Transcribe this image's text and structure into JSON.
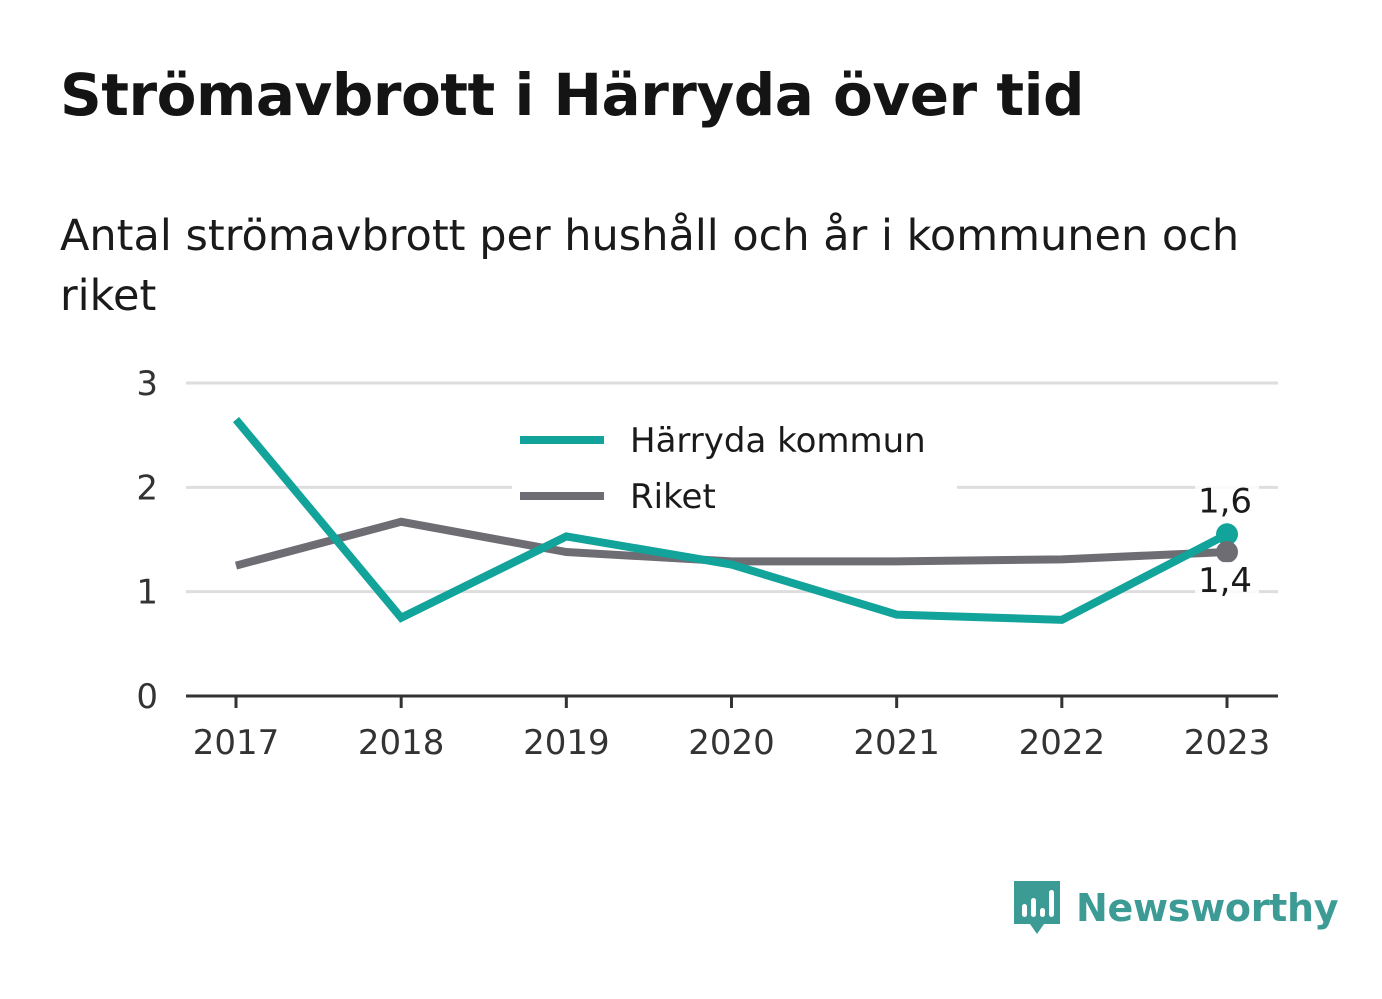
{
  "title": "Strömavbrott i Härryda över tid",
  "subtitle": "Antal strömavbrott per hushåll och år i kommunen och riket",
  "brand": {
    "name": "Newsworthy",
    "icon": "newsworthy-logo-icon",
    "color": "#3d9b95"
  },
  "chart_data": {
    "type": "line",
    "x": [
      "2017",
      "2018",
      "2019",
      "2020",
      "2021",
      "2022",
      "2023"
    ],
    "ylim": [
      0,
      3
    ],
    "yticks": [
      "0",
      "1",
      "2",
      "3"
    ],
    "grid": true,
    "legend_position": "top-center",
    "series": [
      {
        "name": "Härryda kommun",
        "color": "#12a39a",
        "values": [
          2.65,
          0.75,
          1.53,
          1.26,
          0.78,
          0.73,
          1.55
        ],
        "end_label": "1,6"
      },
      {
        "name": "Riket",
        "color": "#6e6d73",
        "values": [
          1.25,
          1.67,
          1.38,
          1.29,
          1.29,
          1.31,
          1.38
        ],
        "end_label": "1,4"
      }
    ]
  }
}
